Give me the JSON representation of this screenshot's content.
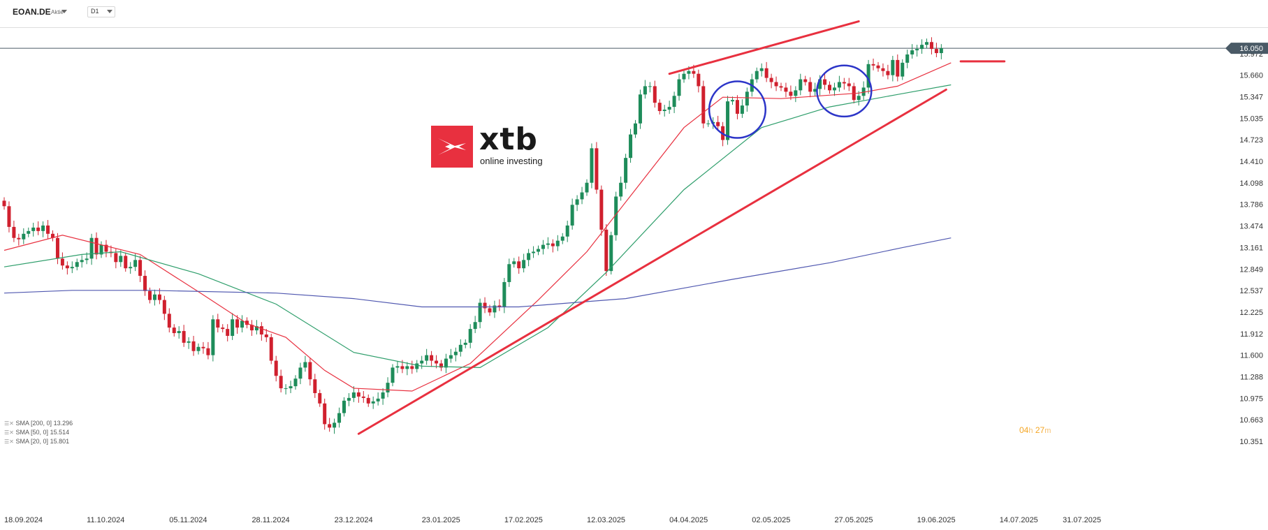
{
  "toolbar": {
    "symbol": "EOAN.DE",
    "instrument_type": "Aktie",
    "timeframe": "D1"
  },
  "logo": {
    "word": "xtb",
    "tagline": "online investing"
  },
  "legend": [
    {
      "label": "SMA [200, 0]",
      "value": "13.296"
    },
    {
      "label": "SMA [50, 0]",
      "value": "15.514"
    },
    {
      "label": "SMA [20, 0]",
      "value": "15.801"
    }
  ],
  "timer": {
    "hours": "04",
    "h": "h",
    "minutes": "27",
    "m": "m"
  },
  "chart_data": {
    "type": "candlestick",
    "ylim": [
      10.351,
      16.284
    ],
    "y_ticks": [
      "15.972",
      "15.660",
      "15.347",
      "15.035",
      "14.723",
      "14.410",
      "14.098",
      "13.786",
      "13.474",
      "13.161",
      "12.849",
      "12.537",
      "12.225",
      "11.912",
      "11.600",
      "11.288",
      "10.975",
      "10.663",
      "10.351"
    ],
    "x_ticks": [
      {
        "label": "18.09.2024",
        "date": "2024-09-18"
      },
      {
        "label": "11.10.2024",
        "date": "2024-10-11"
      },
      {
        "label": "05.11.2024",
        "date": "2024-11-05"
      },
      {
        "label": "28.11.2024",
        "date": "2024-11-28"
      },
      {
        "label": "23.12.2024",
        "date": "2024-12-23"
      },
      {
        "label": "23.01.2025",
        "date": "2025-01-23"
      },
      {
        "label": "17.02.2025",
        "date": "2025-02-17"
      },
      {
        "label": "12.03.2025",
        "date": "2025-03-12"
      },
      {
        "label": "04.04.2025",
        "date": "2025-04-04"
      },
      {
        "label": "02.05.2025",
        "date": "2025-05-02"
      },
      {
        "label": "27.05.2025",
        "date": "2025-05-27"
      },
      {
        "label": "19.06.2025",
        "date": "2025-06-19"
      },
      {
        "label": "14.07.2025",
        "date": "2025-07-14"
      },
      {
        "label": "31.07.2025",
        "date": "2025-07-31"
      }
    ],
    "current_price": "16.050",
    "close_series": [
      13.76,
      13.46,
      13.3,
      13.28,
      13.36,
      13.4,
      13.45,
      13.4,
      13.48,
      13.36,
      13.3,
      13.0,
      12.9,
      12.86,
      12.88,
      12.95,
      12.98,
      13.0,
      13.3,
      13.06,
      13.2,
      13.1,
      13.08,
      12.95,
      13.04,
      12.86,
      12.88,
      12.98,
      12.75,
      12.53,
      12.4,
      12.48,
      12.4,
      12.2,
      12.0,
      11.92,
      11.95,
      11.78,
      11.8,
      11.66,
      11.72,
      11.7,
      11.6,
      12.12,
      12.0,
      11.98,
      11.88,
      12.12,
      12.0,
      12.1,
      12.04,
      11.96,
      12.02,
      11.9,
      11.86,
      11.52,
      11.3,
      11.12,
      11.12,
      11.15,
      11.26,
      11.42,
      11.5,
      11.25,
      11.05,
      10.9,
      10.6,
      10.55,
      10.62,
      10.76,
      10.94,
      10.98,
      11.06,
      11.0,
      10.98,
      10.9,
      10.93,
      10.97,
      11.06,
      11.2,
      11.42,
      11.44,
      11.4,
      11.44,
      11.4,
      11.48,
      11.52,
      11.6,
      11.52,
      11.48,
      11.42,
      11.55,
      11.6,
      11.65,
      11.75,
      11.78,
      11.98,
      12.08,
      12.36,
      12.28,
      12.22,
      12.32,
      12.3,
      12.66,
      12.92,
      12.96,
      12.86,
      12.98,
      13.08,
      13.1,
      13.14,
      13.2,
      13.22,
      13.18,
      13.26,
      13.32,
      13.48,
      13.78,
      13.86,
      13.96,
      14.1,
      14.6,
      14.0,
      13.42,
      12.82,
      13.34,
      13.9,
      14.1,
      14.46,
      14.8,
      14.96,
      15.38,
      15.5,
      15.5,
      15.26,
      15.14,
      15.16,
      15.2,
      15.36,
      15.6,
      15.68,
      15.72,
      15.68,
      15.5,
      14.96,
      14.96,
      14.98,
      14.92,
      14.72,
      15.28,
      15.3,
      15.1,
      15.22,
      15.42,
      15.6,
      15.72,
      15.76,
      15.62,
      15.56,
      15.5,
      15.48,
      15.42,
      15.36,
      15.44,
      15.6,
      15.56,
      15.42,
      15.46,
      15.6,
      15.52,
      15.44,
      15.48,
      15.56,
      15.54,
      15.5,
      15.3,
      15.36,
      15.48,
      15.82,
      15.8,
      15.76,
      15.72,
      15.66,
      15.88,
      15.64,
      15.84,
      15.96,
      16.02,
      16.04,
      16.1,
      16.14,
      16.04,
      15.98,
      16.05
    ],
    "series": [
      {
        "name": "SMA [20, 0]",
        "color": "#e8303f",
        "values": [
          [
            0,
            13.12
          ],
          [
            12,
            13.34
          ],
          [
            28,
            13.06
          ],
          [
            40,
            12.52
          ],
          [
            50,
            12.06
          ],
          [
            58,
            11.86
          ],
          [
            66,
            11.38
          ],
          [
            72,
            11.12
          ],
          [
            84,
            11.08
          ],
          [
            96,
            11.48
          ],
          [
            110,
            12.4
          ],
          [
            120,
            13.1
          ],
          [
            130,
            14.0
          ],
          [
            140,
            14.9
          ],
          [
            148,
            15.34
          ],
          [
            160,
            15.32
          ],
          [
            176,
            15.4
          ],
          [
            184,
            15.5
          ],
          [
            195,
            15.84
          ]
        ]
      },
      {
        "name": "SMA [50, 0]",
        "color": "#2e9e6b",
        "values": [
          [
            0,
            12.88
          ],
          [
            16,
            13.06
          ],
          [
            24,
            13.1
          ],
          [
            40,
            12.78
          ],
          [
            56,
            12.34
          ],
          [
            72,
            11.64
          ],
          [
            86,
            11.44
          ],
          [
            98,
            11.42
          ],
          [
            112,
            12.0
          ],
          [
            124,
            12.8
          ],
          [
            140,
            14.0
          ],
          [
            156,
            14.9
          ],
          [
            170,
            15.2
          ],
          [
            184,
            15.38
          ],
          [
            195,
            15.52
          ]
        ]
      },
      {
        "name": "SMA [200, 0]",
        "color": "#5058b0",
        "values": [
          [
            0,
            12.5
          ],
          [
            14,
            12.54
          ],
          [
            30,
            12.54
          ],
          [
            56,
            12.5
          ],
          [
            72,
            12.42
          ],
          [
            86,
            12.3
          ],
          [
            106,
            12.3
          ],
          [
            128,
            12.42
          ],
          [
            150,
            12.7
          ],
          [
            170,
            12.94
          ],
          [
            185,
            13.16
          ],
          [
            195,
            13.3
          ]
        ]
      }
    ],
    "annotations": {
      "support_line": {
        "color": "#e8303f",
        "from": [
          73,
          10.46
        ],
        "to": [
          194,
          15.45
        ]
      },
      "resistance_line": {
        "color": "#e8303f",
        "from": [
          137,
          15.68
        ],
        "to": [
          176,
          16.44
        ]
      },
      "level_marker": {
        "color": "#e8303f",
        "from": [
          197,
          15.86
        ],
        "to": [
          206,
          15.86
        ]
      },
      "circles": [
        {
          "color": "#2c35c8",
          "center": [
            151,
            15.16
          ],
          "radius_x": 5.8,
          "radius_y": 0.41
        },
        {
          "color": "#2c35c8",
          "center": [
            173,
            15.43
          ],
          "radius_x": 5.6,
          "radius_y": 0.37
        }
      ]
    }
  }
}
